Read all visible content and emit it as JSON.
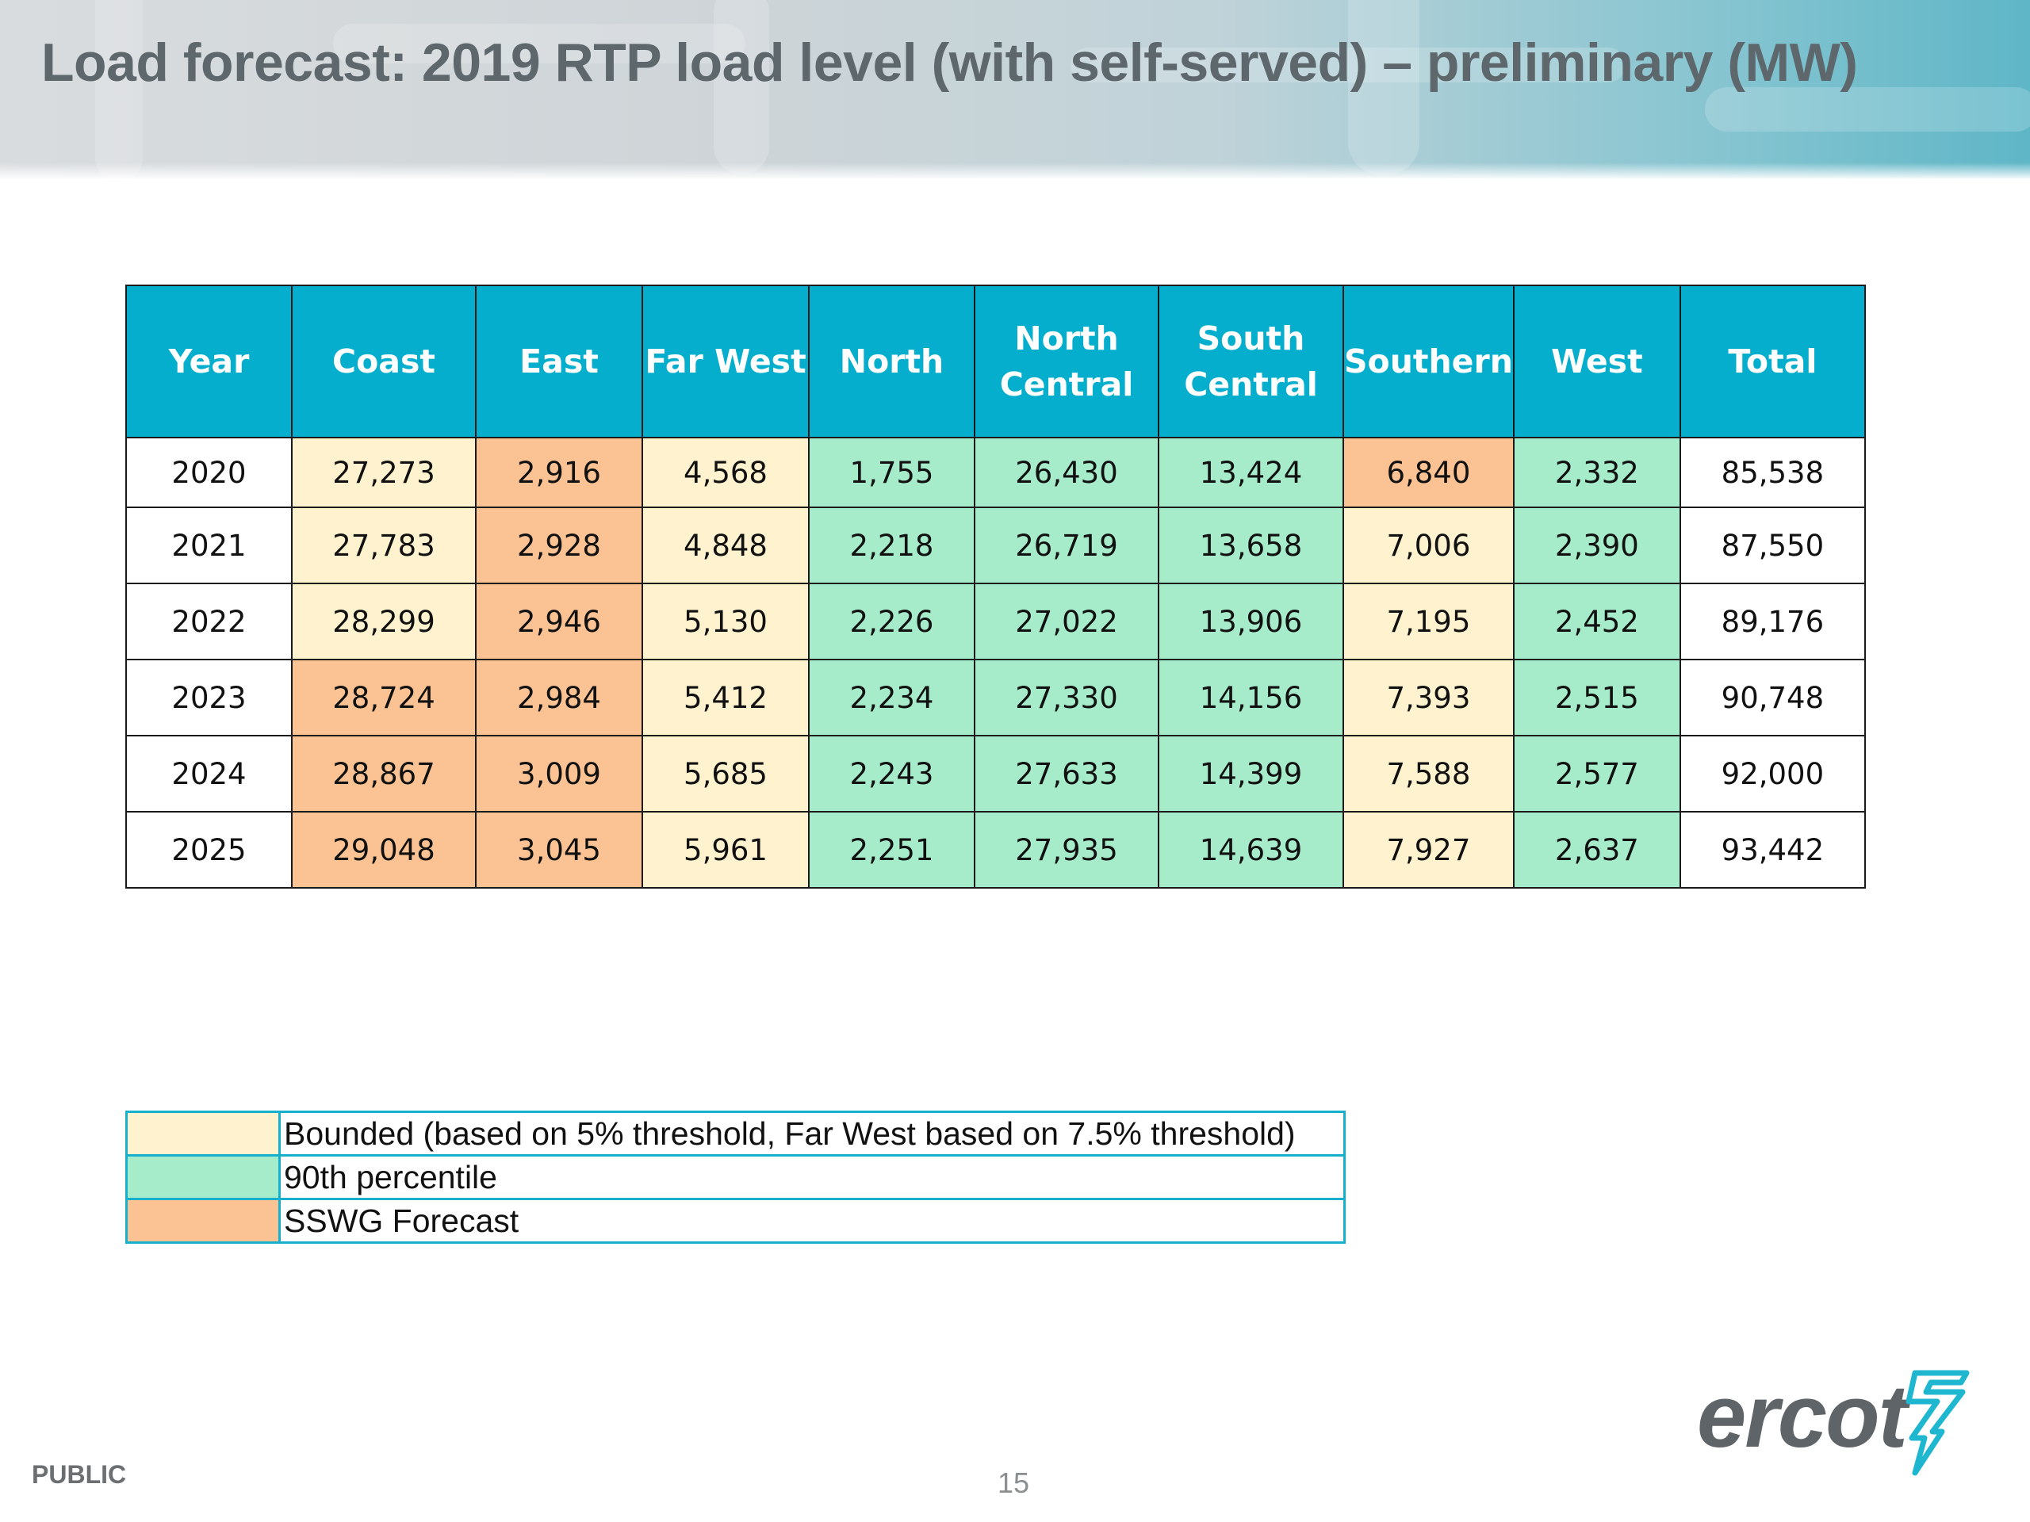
{
  "slide": {
    "title": "Load forecast: 2019 RTP load level (with self-served) – preliminary (MW)",
    "footer_label": "PUBLIC",
    "page_number": "15",
    "logo_text": "ercot"
  },
  "table": {
    "headers": [
      [
        "Year"
      ],
      [
        "Coast"
      ],
      [
        "East"
      ],
      [
        "Far West"
      ],
      [
        "North"
      ],
      [
        "North",
        "Central"
      ],
      [
        "South",
        "Central"
      ],
      [
        "Southern"
      ],
      [
        "West"
      ],
      [
        "Total"
      ]
    ],
    "rows": [
      [
        "2020",
        "27,273",
        "2,916",
        "4,568",
        "1,755",
        "26,430",
        "13,424",
        "6,840",
        "2,332",
        "85,538"
      ],
      [
        "2021",
        "27,783",
        "2,928",
        "4,848",
        "2,218",
        "26,719",
        "13,658",
        "7,006",
        "2,390",
        "87,550"
      ],
      [
        "2022",
        "28,299",
        "2,946",
        "5,130",
        "2,226",
        "27,022",
        "13,906",
        "7,195",
        "2,452",
        "89,176"
      ],
      [
        "2023",
        "28,724",
        "2,984",
        "5,412",
        "2,234",
        "27,330",
        "14,156",
        "7,393",
        "2,515",
        "90,748"
      ],
      [
        "2024",
        "28,867",
        "3,009",
        "5,685",
        "2,243",
        "27,633",
        "14,399",
        "7,588",
        "2,577",
        "92,000"
      ],
      [
        "2025",
        "29,048",
        "3,045",
        "5,961",
        "2,251",
        "27,935",
        "14,639",
        "7,927",
        "2,637",
        "93,442"
      ]
    ],
    "cell_categories": [
      [
        "none",
        "bounded",
        "sswg",
        "bounded",
        "p90",
        "p90",
        "p90",
        "sswg",
        "p90",
        "none"
      ],
      [
        "none",
        "bounded",
        "sswg",
        "bounded",
        "p90",
        "p90",
        "p90",
        "bounded",
        "p90",
        "none"
      ],
      [
        "none",
        "bounded",
        "sswg",
        "bounded",
        "p90",
        "p90",
        "p90",
        "bounded",
        "p90",
        "none"
      ],
      [
        "none",
        "sswg",
        "sswg",
        "bounded",
        "p90",
        "p90",
        "p90",
        "bounded",
        "p90",
        "none"
      ],
      [
        "none",
        "sswg",
        "sswg",
        "bounded",
        "p90",
        "p90",
        "p90",
        "bounded",
        "p90",
        "none"
      ],
      [
        "none",
        "sswg",
        "sswg",
        "bounded",
        "p90",
        "p90",
        "p90",
        "bounded",
        "p90",
        "none"
      ]
    ]
  },
  "legend": [
    {
      "category": "bounded",
      "label": "Bounded (based on 5% threshold, Far West based on 7.5% threshold)"
    },
    {
      "category": "p90",
      "label": "90th percentile"
    },
    {
      "category": "sswg",
      "label": "SSWG Forecast"
    }
  ],
  "colors": {
    "header": "#05aecd",
    "bounded": "#fff3cf",
    "p90": "#a6ecca",
    "sswg": "#fbc393",
    "none": "#ffffff",
    "legend_border": "#17b0cc"
  }
}
